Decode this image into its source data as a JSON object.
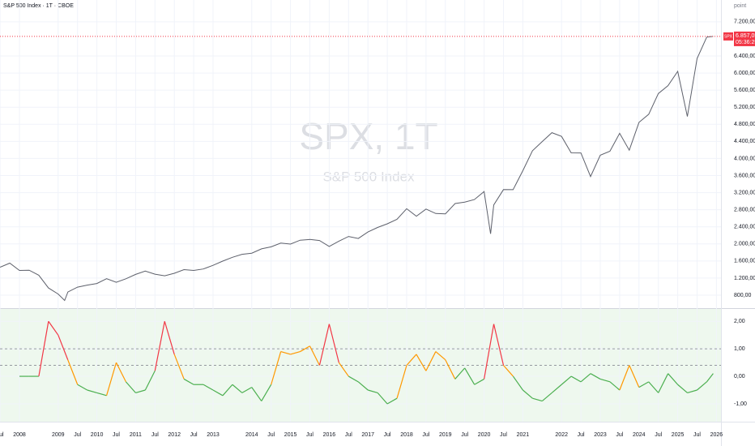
{
  "header": "S&P 500 Index · 1T · CBOE",
  "unit_label": "point",
  "watermark": {
    "title": "SPX, 1T",
    "subtitle": "S&P 500 Index"
  },
  "last_price": {
    "symbol": "SPX",
    "value": 6857.05,
    "label": "6.857,05",
    "countdown": "05:36:25",
    "color": "#f23645"
  },
  "chart_data": [
    {
      "type": "line",
      "color": "#5d606b",
      "grid": true,
      "x": [
        "2007-07",
        "2007-10",
        "2008-01",
        "2008-04",
        "2008-07",
        "2008-10",
        "2009-01",
        "2009-03",
        "2009-04",
        "2009-07",
        "2009-10",
        "2010-01",
        "2010-04",
        "2010-07",
        "2010-10",
        "2011-01",
        "2011-04",
        "2011-07",
        "2011-10",
        "2012-01",
        "2012-04",
        "2012-07",
        "2012-10",
        "2013-01",
        "2013-04",
        "2013-07",
        "2013-10",
        "2014-01",
        "2014-04",
        "2014-07",
        "2014-10",
        "2015-01",
        "2015-04",
        "2015-07",
        "2015-10",
        "2016-01",
        "2016-04",
        "2016-07",
        "2016-10",
        "2017-01",
        "2017-04",
        "2017-07",
        "2017-10",
        "2018-01",
        "2018-04",
        "2018-07",
        "2018-10",
        "2019-01",
        "2019-04",
        "2019-07",
        "2019-10",
        "2020-01",
        "2020-03",
        "2020-04",
        "2020-07",
        "2020-10",
        "2021-01",
        "2021-04",
        "2021-07",
        "2021-10",
        "2022-01",
        "2022-04",
        "2022-07",
        "2022-10",
        "2023-01",
        "2023-04",
        "2023-07",
        "2023-10",
        "2024-01",
        "2024-04",
        "2024-07",
        "2024-10",
        "2025-01",
        "2025-04",
        "2025-07",
        "2025-10",
        "2025-12"
      ],
      "values": [
        1455,
        1549,
        1378,
        1385,
        1267,
        968,
        826,
        676,
        873,
        987,
        1036,
        1074,
        1186,
        1101,
        1183,
        1286,
        1363,
        1292,
        1253,
        1312,
        1397,
        1379,
        1412,
        1498,
        1597,
        1686,
        1757,
        1783,
        1884,
        1931,
        2018,
        1995,
        2086,
        2104,
        2079,
        1940,
        2065,
        2174,
        2126,
        2279,
        2384,
        2470,
        2575,
        2824,
        2648,
        2816,
        2711,
        2704,
        2945,
        2980,
        3038,
        3226,
        2237,
        2912,
        3271,
        3270,
        3714,
        4181,
        4395,
        4605,
        4516,
        4132,
        4130,
        3577,
        4077,
        4169,
        4589,
        4194,
        4846,
        5036,
        5522,
        5705,
        6040,
        4982,
        6339,
        6840,
        6857
      ],
      "ylim": [
        496,
        7710
      ],
      "yticks": [
        {
          "value": 800,
          "label": "800,00"
        },
        {
          "value": 1200,
          "label": "1.200,00"
        },
        {
          "value": 1600,
          "label": "1.600,00"
        },
        {
          "value": 2000,
          "label": "2.000,00"
        },
        {
          "value": 2400,
          "label": "2.400,00"
        },
        {
          "value": 2800,
          "label": "2.800,00"
        },
        {
          "value": 3200,
          "label": "3.200,00"
        },
        {
          "value": 3600,
          "label": "3.600,00"
        },
        {
          "value": 4000,
          "label": "4.000,00"
        },
        {
          "value": 4400,
          "label": "4.400,00"
        },
        {
          "value": 4800,
          "label": "4.800,00"
        },
        {
          "value": 5200,
          "label": "5.200,00"
        },
        {
          "value": 5600,
          "label": "5.600,00"
        },
        {
          "value": 6000,
          "label": "6.000,00"
        },
        {
          "value": 6400,
          "label": "6.400,00"
        },
        {
          "value": 7200,
          "label": "7.200,00"
        }
      ]
    },
    {
      "type": "line",
      "color": "#4caf50",
      "grid": true,
      "zones": [
        {
          "above": 1.5,
          "color": "#f23645"
        },
        {
          "above": 0.4,
          "color": "#ff9800"
        }
      ],
      "levels": [
        1,
        0.4
      ],
      "x": [
        "2008-01",
        "2008-04",
        "2008-07",
        "2008-10",
        "2009-01",
        "2009-04",
        "2009-07",
        "2009-10",
        "2010-01",
        "2010-04",
        "2010-07",
        "2010-10",
        "2011-01",
        "2011-04",
        "2011-07",
        "2011-10",
        "2012-01",
        "2012-04",
        "2012-07",
        "2012-10",
        "2013-01",
        "2013-04",
        "2013-07",
        "2013-10",
        "2014-01",
        "2014-04",
        "2014-07",
        "2014-10",
        "2015-01",
        "2015-04",
        "2015-07",
        "2015-10",
        "2016-01",
        "2016-04",
        "2016-07",
        "2016-10",
        "2017-01",
        "2017-04",
        "2017-07",
        "2017-10",
        "2018-01",
        "2018-04",
        "2018-07",
        "2018-10",
        "2019-01",
        "2019-04",
        "2019-07",
        "2019-10",
        "2020-01",
        "2020-04",
        "2020-07",
        "2020-10",
        "2021-01",
        "2021-04",
        "2021-07",
        "2021-10",
        "2022-01",
        "2022-04",
        "2022-07",
        "2022-10",
        "2023-01",
        "2023-04",
        "2023-07",
        "2023-10",
        "2024-01",
        "2024-04",
        "2024-07",
        "2024-10",
        "2025-01",
        "2025-04",
        "2025-07",
        "2025-10",
        "2025-12"
      ],
      "values": [
        0,
        0,
        0,
        2,
        1.5,
        0.6,
        -0.3,
        -0.5,
        -0.6,
        -0.7,
        0.5,
        -0.2,
        -0.6,
        -0.5,
        0.2,
        2,
        0.8,
        -0.1,
        -0.3,
        -0.3,
        -0.5,
        -0.7,
        -0.3,
        -0.6,
        -0.4,
        -0.9,
        -0.3,
        0.9,
        0.8,
        0.9,
        1.1,
        0.4,
        1.9,
        0.5,
        0,
        -0.2,
        -0.5,
        -0.6,
        -1,
        -0.8,
        0.4,
        0.8,
        0.2,
        0.9,
        0.6,
        -0.1,
        0.3,
        -0.3,
        -0.1,
        1.9,
        0.4,
        0,
        -0.5,
        -0.8,
        -0.9,
        -0.6,
        -0.3,
        0,
        -0.2,
        0.1,
        -0.1,
        -0.2,
        -0.5,
        0.4,
        -0.4,
        -0.2,
        -0.6,
        0.1,
        -0.3,
        -0.6,
        -0.5,
        -0.2,
        0.1
      ],
      "ylim": [
        -1.65,
        2.45
      ],
      "yticks": [
        {
          "value": -1,
          "label": "-1,00"
        },
        {
          "value": 0,
          "label": "0,00"
        },
        {
          "value": 1,
          "label": "1,00"
        },
        {
          "value": 2,
          "label": "2,00"
        }
      ]
    }
  ],
  "xticks": [
    {
      "value": "2007-07",
      "label": "Jul"
    },
    {
      "value": "2008-01",
      "label": "2008"
    },
    {
      "value": "2009-01",
      "label": "2009"
    },
    {
      "value": "2009-07",
      "label": "Jul"
    },
    {
      "value": "2010-01",
      "label": "2010"
    },
    {
      "value": "2010-07",
      "label": "Jul"
    },
    {
      "value": "2011-01",
      "label": "2011"
    },
    {
      "value": "2011-07",
      "label": "Jul"
    },
    {
      "value": "2012-01",
      "label": "2012"
    },
    {
      "value": "2012-07",
      "label": "Jul"
    },
    {
      "value": "2013-01",
      "label": "2013"
    },
    {
      "value": "2014-01",
      "label": "2014"
    },
    {
      "value": "2014-07",
      "label": "Jul"
    },
    {
      "value": "2015-01",
      "label": "2015"
    },
    {
      "value": "2015-07",
      "label": "Jul"
    },
    {
      "value": "2016-01",
      "label": "2016"
    },
    {
      "value": "2016-07",
      "label": "Jul"
    },
    {
      "value": "2017-01",
      "label": "2017"
    },
    {
      "value": "2017-07",
      "label": "Jul"
    },
    {
      "value": "2018-01",
      "label": "2018"
    },
    {
      "value": "2018-07",
      "label": "Jul"
    },
    {
      "value": "2019-01",
      "label": "2019"
    },
    {
      "value": "2019-07",
      "label": "Jul"
    },
    {
      "value": "2020-01",
      "label": "2020"
    },
    {
      "value": "2020-07",
      "label": "Jul"
    },
    {
      "value": "2021-01",
      "label": "2021"
    },
    {
      "value": "2022-01",
      "label": "2022"
    },
    {
      "value": "2022-07",
      "label": "Jul"
    },
    {
      "value": "2023-01",
      "label": "2023"
    },
    {
      "value": "2023-07",
      "label": "Jul"
    },
    {
      "value": "2024-01",
      "label": "2024"
    },
    {
      "value": "2024-07",
      "label": "Jul"
    },
    {
      "value": "2025-01",
      "label": "2025"
    },
    {
      "value": "2025-07",
      "label": "Jul"
    },
    {
      "value": "2026-01",
      "label": "2026"
    }
  ]
}
